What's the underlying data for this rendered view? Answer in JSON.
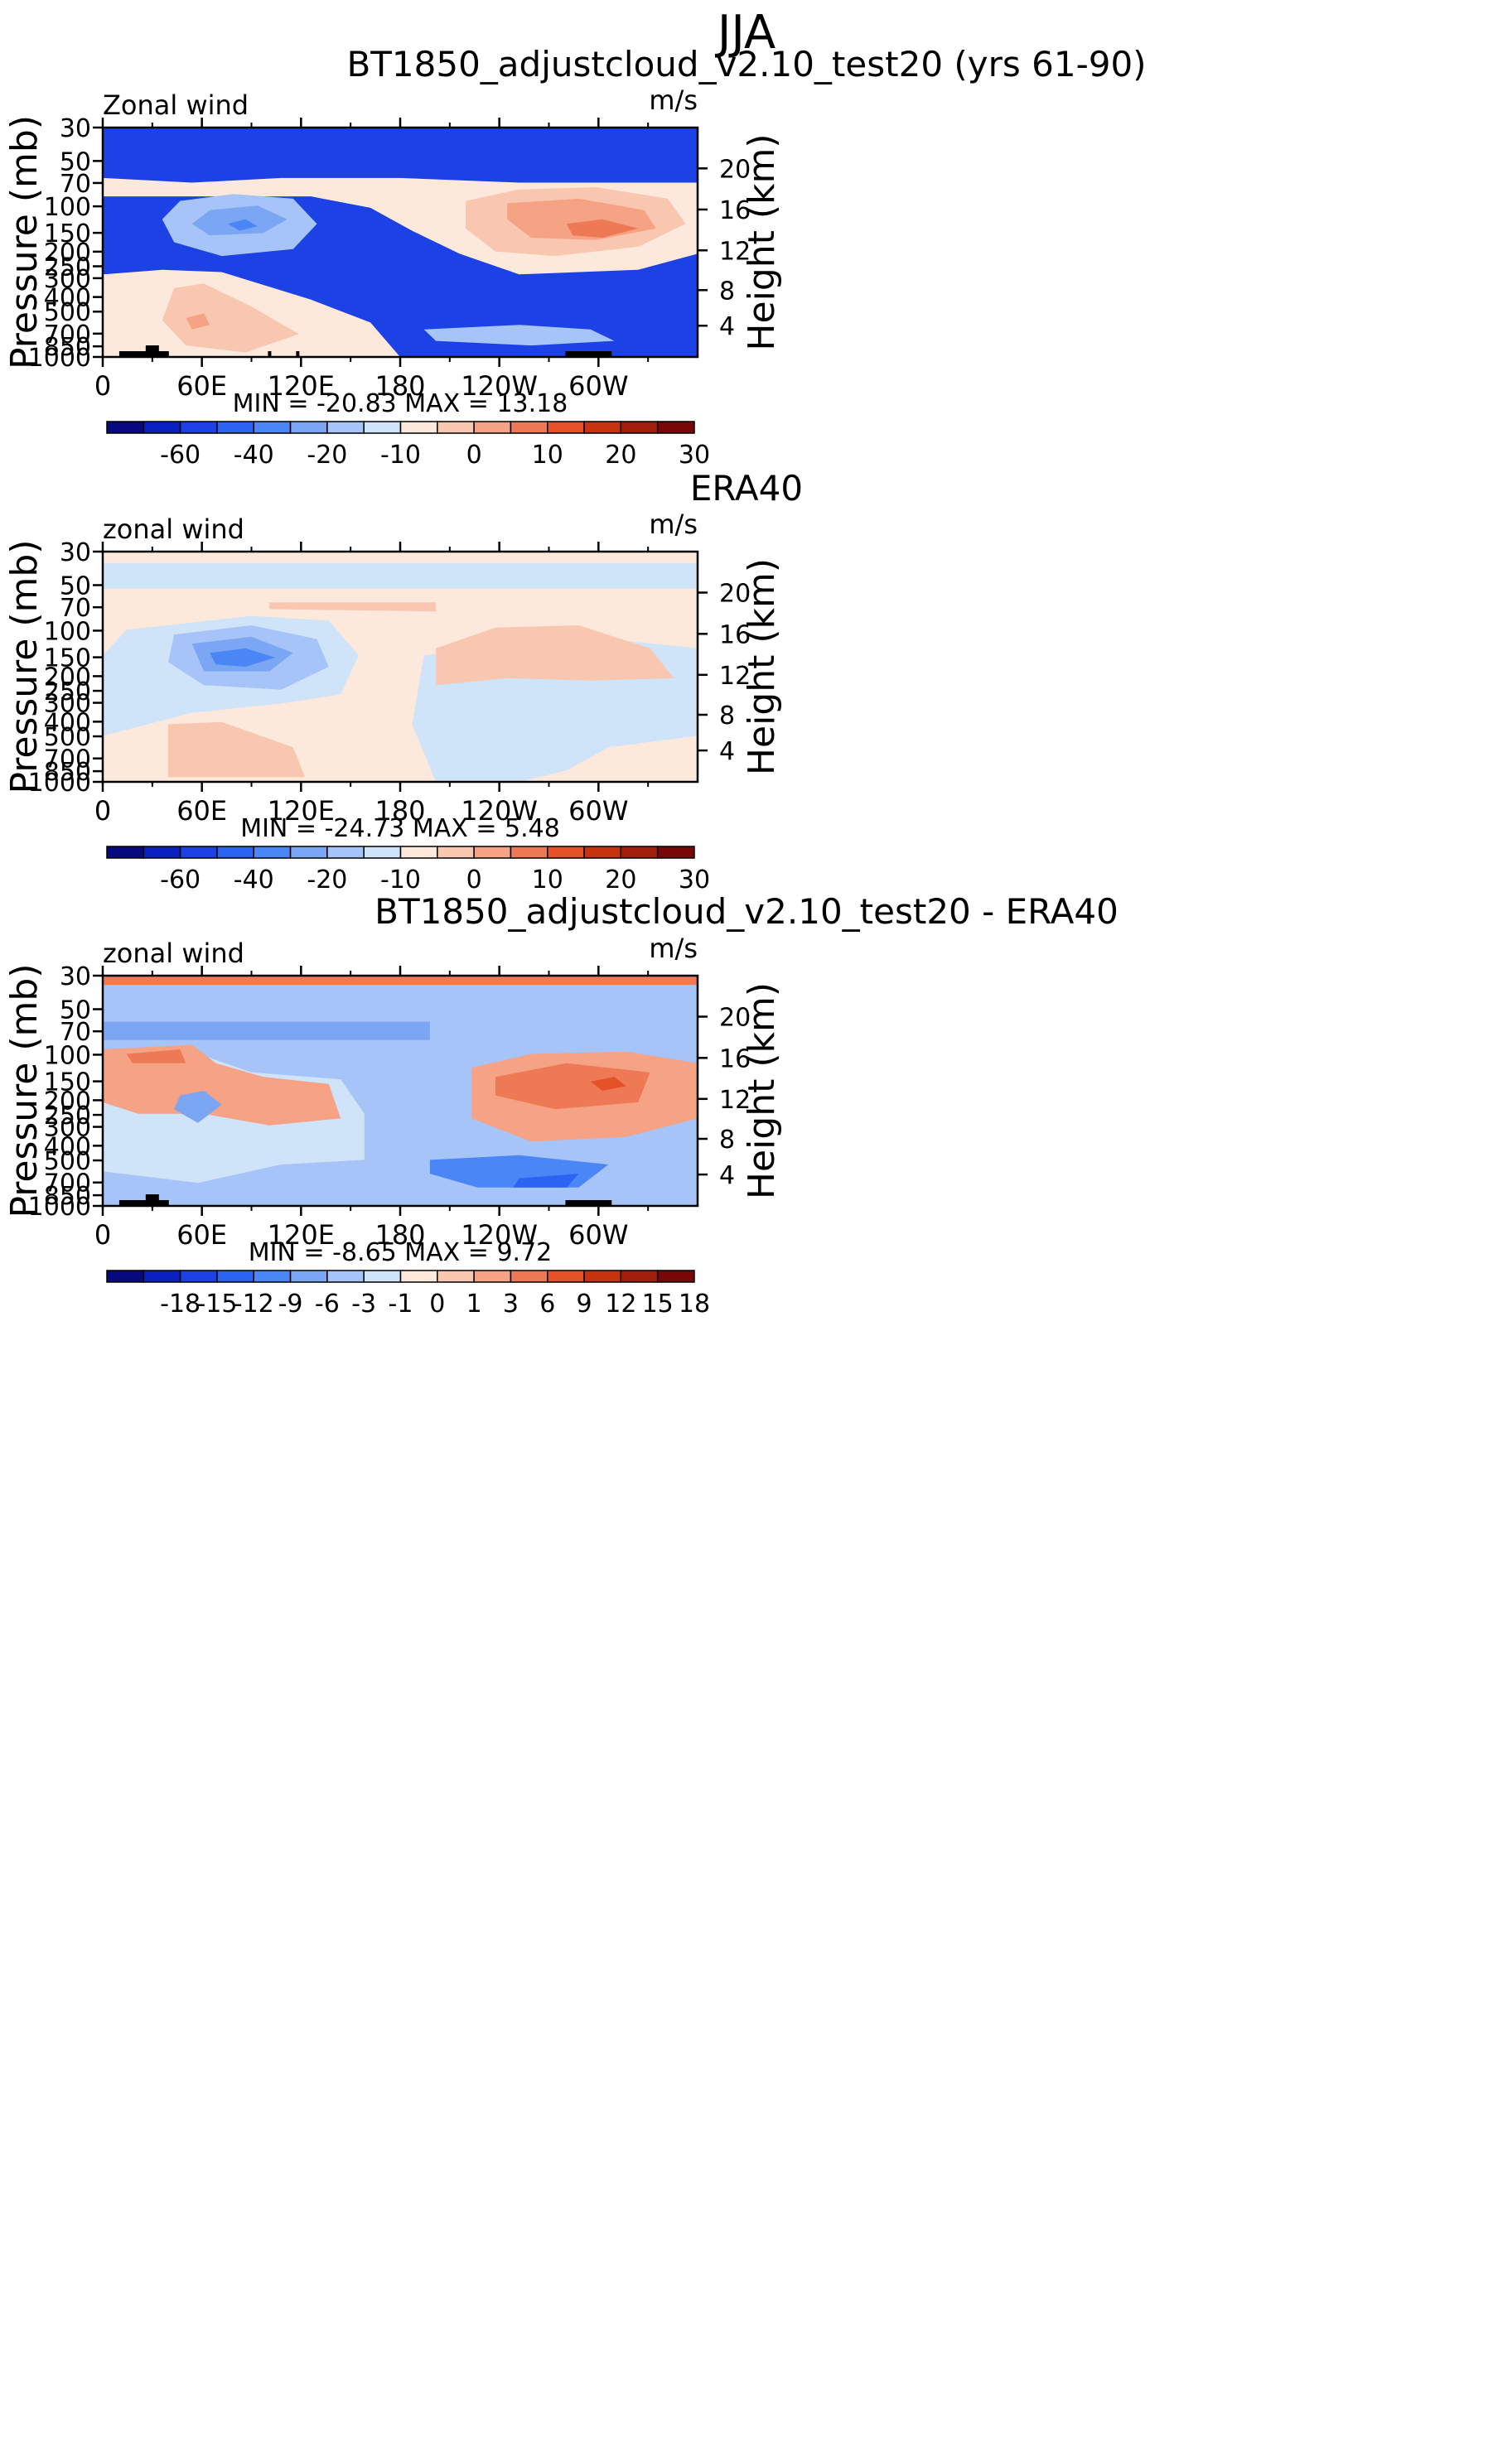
{
  "page_title": "JJA",
  "shared_axes": {
    "x_ticks": [
      {
        "lon": 0,
        "label": "0"
      },
      {
        "lon": 60,
        "label": "60E"
      },
      {
        "lon": 120,
        "label": "120E"
      },
      {
        "lon": 180,
        "label": "180"
      },
      {
        "lon": 240,
        "label": "120W"
      },
      {
        "lon": 300,
        "label": "60W"
      }
    ],
    "x_minor": [
      30,
      90,
      150,
      210,
      270,
      330
    ],
    "xlim": [
      0,
      360
    ],
    "y_pressure_ticks": [
      30,
      50,
      70,
      100,
      150,
      200,
      250,
      300,
      400,
      500,
      700,
      850,
      1000
    ],
    "ylim_mb": [
      1000,
      30
    ],
    "ylabel": "Pressure (mb)",
    "y_right_label": "Height (km)",
    "height_ticks": [
      {
        "km": 4,
        "p": 620
      },
      {
        "km": 8,
        "p": 360
      },
      {
        "km": 12,
        "p": 196
      },
      {
        "km": 16,
        "p": 105
      },
      {
        "km": 20,
        "p": 56
      }
    ],
    "units": "m/s"
  },
  "chart_data": [
    {
      "type": "contour",
      "title": "BT1850_adjustcloud_v2.10_test20 (yrs 61-90)",
      "variable_label": "Zonal wind",
      "units": "m/s",
      "stats_text": "MIN = -20.83   MAX =  13.18",
      "min": -20.83,
      "max": 13.18,
      "colorbar_levels": [
        -70,
        -60,
        -50,
        -40,
        -30,
        -20,
        -15,
        -10,
        -5,
        0,
        5,
        10,
        15,
        20,
        25,
        30
      ],
      "colorbar_labels": [
        "-60",
        "-40",
        "-20",
        "-10",
        "0",
        "10",
        "20",
        "30"
      ],
      "features": [
        {
          "lon": 72,
          "p": 150,
          "value": -20.83
        },
        {
          "lon": 290,
          "p": 150,
          "value": 13.18
        },
        {
          "lon": 50,
          "p": 680,
          "value": 9
        }
      ]
    },
    {
      "type": "contour",
      "title": "ERA40",
      "variable_label": "zonal wind",
      "units": "m/s",
      "stats_text": "MIN = -24.73   MAX =    5.48",
      "min": -24.73,
      "max": 5.48,
      "colorbar_levels": [
        -70,
        -60,
        -50,
        -40,
        -30,
        -20,
        -15,
        -10,
        -5,
        0,
        5,
        10,
        15,
        20,
        25,
        30
      ],
      "colorbar_labels": [
        "-60",
        "-40",
        "-20",
        "-10",
        "0",
        "10",
        "20",
        "30"
      ],
      "features": [
        {
          "lon": 80,
          "p": 150,
          "value": -24.73
        },
        {
          "lon": 270,
          "p": 120,
          "value": 5.48
        }
      ]
    },
    {
      "type": "contour",
      "title": "BT1850_adjustcloud_v2.10_test20 - ERA40",
      "variable_label": "zonal wind",
      "units": "m/s",
      "stats_text": "MIN =   -8.65   MAX =    9.72",
      "min": -8.65,
      "max": 9.72,
      "colorbar_levels": [
        -21,
        -18,
        -15,
        -12,
        -9,
        -6,
        -3,
        -1,
        0,
        1,
        3,
        6,
        9,
        12,
        15,
        18
      ],
      "colorbar_labels": [
        "-18",
        "-15",
        "-12",
        "-9",
        "-6",
        "-3",
        "-1",
        "0",
        "1",
        "3",
        "6",
        "9",
        "12",
        "15",
        "18"
      ],
      "features": [
        {
          "lon": 230,
          "p": 820,
          "value": -8.65
        },
        {
          "lon": 290,
          "p": 150,
          "value": 9.72
        }
      ]
    }
  ],
  "colors": {
    "scale": [
      "#08087f",
      "#0a20c0",
      "#1c42e6",
      "#2d63f2",
      "#4a86f5",
      "#7aa6f3",
      "#a6c4f7",
      "#cfe3f9",
      "#fde8dc",
      "#f9c7af",
      "#f5a285",
      "#ee7a55",
      "#e55128",
      "#c8330f",
      "#a21e0b",
      "#7a0707"
    ],
    "terrain": "#000000",
    "axis": "#000000"
  }
}
